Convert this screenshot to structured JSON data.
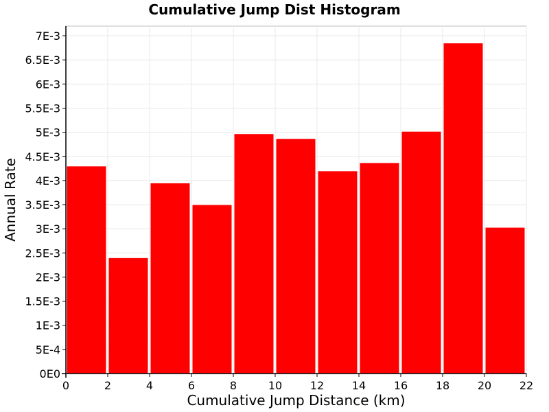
{
  "chart_data": {
    "type": "bar",
    "title": "Cumulative Jump Dist Histogram",
    "xlabel": "Cumulative Jump Distance (km)",
    "ylabel": "Annual Rate",
    "bins": [
      {
        "x_start": 0,
        "x_end": 2,
        "value": 0.0043
      },
      {
        "x_start": 2,
        "x_end": 4,
        "value": 0.0024
      },
      {
        "x_start": 4,
        "x_end": 6,
        "value": 0.00395
      },
      {
        "x_start": 6,
        "x_end": 8,
        "value": 0.0035
      },
      {
        "x_start": 8,
        "x_end": 10,
        "value": 0.00497
      },
      {
        "x_start": 10,
        "x_end": 12,
        "value": 0.00487
      },
      {
        "x_start": 12,
        "x_end": 14,
        "value": 0.0042
      },
      {
        "x_start": 14,
        "x_end": 16,
        "value": 0.00437
      },
      {
        "x_start": 16,
        "x_end": 18,
        "value": 0.00502
      },
      {
        "x_start": 18,
        "x_end": 20,
        "value": 0.00685
      },
      {
        "x_start": 20,
        "x_end": 22,
        "value": 0.00303
      }
    ],
    "xlim": [
      0,
      22
    ],
    "ylim": [
      0,
      0.0072
    ],
    "x_ticks": [
      0,
      2,
      4,
      6,
      8,
      10,
      12,
      14,
      16,
      18,
      20,
      22
    ],
    "x_tick_labels": [
      "0",
      "2",
      "4",
      "6",
      "8",
      "10",
      "12",
      "14",
      "16",
      "18",
      "20",
      "22"
    ],
    "y_ticks": [
      0,
      0.0005,
      0.001,
      0.0015,
      0.002,
      0.0025,
      0.003,
      0.0035,
      0.004,
      0.0045,
      0.005,
      0.0055,
      0.006,
      0.0065,
      0.007
    ],
    "y_tick_labels": [
      "0E0",
      "5E-4",
      "1E-3",
      "1.5E-3",
      "2E-3",
      "2.5E-3",
      "3E-3",
      "3.5E-3",
      "4E-3",
      "4.5E-3",
      "5E-3",
      "5.5E-3",
      "6E-3",
      "6.5E-3",
      "7E-3"
    ],
    "grid": true,
    "colors": {
      "bar_fill": "#ff0000",
      "bar_stroke": "#ffffff",
      "grid": "#e8e8e8",
      "axis": "#000000",
      "frame": "#bdbdbd"
    }
  }
}
